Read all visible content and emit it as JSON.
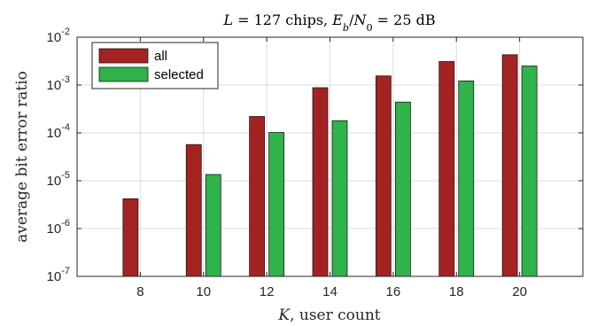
{
  "chart_data": {
    "type": "bar",
    "title": {
      "parts": [
        {
          "text": "L",
          "italic": true
        },
        {
          "text": " = 127 chips, ",
          "italic": false
        },
        {
          "text": "E",
          "italic": true
        },
        {
          "text": "b",
          "italic": true,
          "sub": true
        },
        {
          "text": "/",
          "italic": false
        },
        {
          "text": "N",
          "italic": true
        },
        {
          "text": "0",
          "italic": false,
          "sub": true
        },
        {
          "text": " = 25 dB",
          "italic": false
        }
      ]
    },
    "xlabel": {
      "parts": [
        {
          "text": "K",
          "italic": true
        },
        {
          "text": ", user count",
          "italic": false
        }
      ]
    },
    "ylabel": "average bit error ratio",
    "yscale": "log",
    "ylim": [
      1e-07,
      0.01
    ],
    "xlim": [
      6,
      22
    ],
    "categories": [
      "8",
      "10",
      "12",
      "14",
      "16",
      "18",
      "20"
    ],
    "x": [
      8,
      10,
      12,
      14,
      16,
      18,
      20
    ],
    "yticks": [
      {
        "base": "10",
        "exp": "-7"
      },
      {
        "base": "10",
        "exp": "-6"
      },
      {
        "base": "10",
        "exp": "-5"
      },
      {
        "base": "10",
        "exp": "-4"
      },
      {
        "base": "10",
        "exp": "-3"
      },
      {
        "base": "10",
        "exp": "-2"
      }
    ],
    "grid": true,
    "legend_position": "top-left",
    "series": [
      {
        "name": "all",
        "color": "#a52222",
        "values": [
          4.2e-06,
          5.7e-05,
          0.00022,
          0.00088,
          0.00155,
          0.0031,
          0.0043
        ]
      },
      {
        "name": "selected",
        "color": "#2fb34a",
        "values": [
          null,
          1.35e-05,
          0.000102,
          0.00018,
          0.00044,
          0.00122,
          0.0025
        ]
      }
    ]
  }
}
